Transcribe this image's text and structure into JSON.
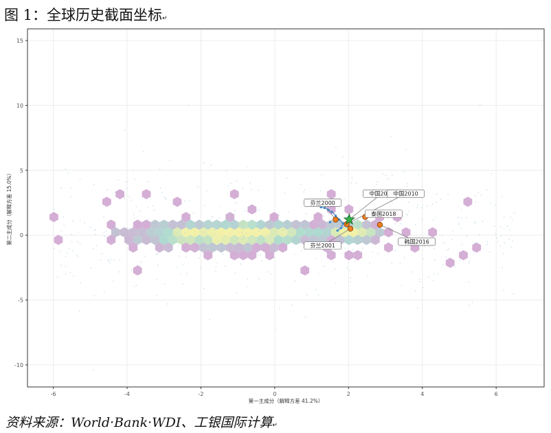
{
  "figure": {
    "title": "图 1：全球历史截面坐标",
    "source": "资料来源：World·Bank·WDI、工银国际计算",
    "para_mark": "↵"
  },
  "chart_data": {
    "type": "scatter",
    "title": "",
    "xlabel": "第一主成分（解释方差 41.2%）",
    "ylabel": "第二主成分（解释方差 15.0%）",
    "xlim": [
      -6.7,
      7.3
    ],
    "ylim": [
      -11.7,
      15.9
    ],
    "xticks": [
      -6,
      -4,
      -2,
      0,
      2,
      4,
      6
    ],
    "yticks": [
      -10,
      -5,
      0,
      5,
      10,
      15
    ],
    "grid": true,
    "background": "hexbin density of all country-year observations",
    "colors": {
      "density_low": "#c6a8cd",
      "density_mid": "#9fd6c9",
      "density_high": "#f1ef9a",
      "path": "#3d86c6",
      "points": "#f07d1e",
      "star": "#33b24a"
    },
    "path_points": [
      {
        "x": 1.25,
        "y": 2.15
      },
      {
        "x": 1.35,
        "y": 2.1
      },
      {
        "x": 1.45,
        "y": 1.95
      },
      {
        "x": 1.55,
        "y": 1.8
      },
      {
        "x": 1.65,
        "y": 1.5
      },
      {
        "x": 1.75,
        "y": 1.2
      },
      {
        "x": 1.85,
        "y": 0.9
      },
      {
        "x": 1.8,
        "y": 0.55
      },
      {
        "x": 1.7,
        "y": 0.35
      },
      {
        "x": 1.55,
        "y": 2.55
      },
      {
        "x": 1.5,
        "y": 1.0
      },
      {
        "x": 2.0,
        "y": 1.4
      }
    ],
    "highlight_points": [
      {
        "label": "芬兰2000",
        "x": 1.65,
        "y": 1.2
      },
      {
        "label": "芬兰2001",
        "x": 2.05,
        "y": 0.5
      },
      {
        "label": "泰国2018",
        "x": 2.45,
        "y": 1.4
      },
      {
        "label": "韩国2016",
        "x": 2.85,
        "y": 0.8
      },
      {
        "label": "中国2010",
        "x": 1.95,
        "y": 0.85
      }
    ],
    "star_point": {
      "label": "中国2024",
      "x": 2.02,
      "y": 1.2
    },
    "annotations": [
      {
        "label": "芬兰2000",
        "x": 1.65,
        "y": 1.2,
        "tx": 1.3,
        "ty": 2.5
      },
      {
        "label": "中国2024",
        "x": 2.02,
        "y": 1.2,
        "tx": 2.9,
        "ty": 3.2
      },
      {
        "label": "中国2010",
        "x": 1.95,
        "y": 0.85,
        "tx": 3.55,
        "ty": 3.2
      },
      {
        "label": "泰国2018",
        "x": 2.45,
        "y": 1.4,
        "tx": 2.95,
        "ty": 1.65
      },
      {
        "label": "芬兰2001",
        "x": 2.05,
        "y": 0.5,
        "tx": 1.3,
        "ty": -0.8
      },
      {
        "label": "韩国2016",
        "x": 2.85,
        "y": 0.8,
        "tx": 3.85,
        "ty": -0.5
      }
    ]
  }
}
